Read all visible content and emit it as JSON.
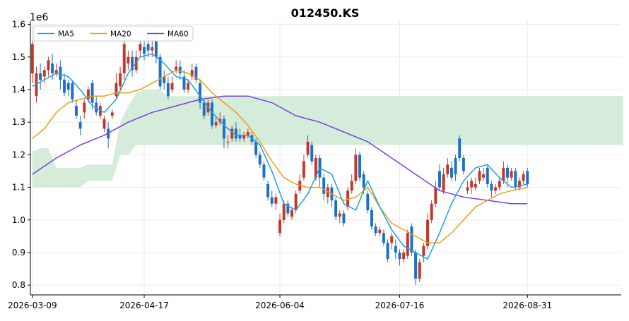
{
  "chart_data": {
    "type": "candlestick",
    "title": "012450.KS",
    "y_multiplier_label": "1e6",
    "ylim": [
      0.77,
      1.61
    ],
    "y_ticks": [
      0.8,
      0.9,
      1.0,
      1.1,
      1.2,
      1.3,
      1.4,
      1.5,
      1.6
    ],
    "y_tick_labels": [
      "0.8",
      "0.9",
      "1.0",
      "1.1",
      "1.2",
      "1.3",
      "1.4",
      "1.5",
      "1.6"
    ],
    "x_start": "2026-03-09",
    "x_ticks": [
      "2026-03-09",
      "2026-04-17",
      "2026-06-04",
      "2026-07-16",
      "2026-08-31"
    ],
    "x_tick_index": [
      0,
      28,
      62,
      92,
      124
    ],
    "x_index_range": [
      -0.5,
      147.5
    ],
    "grid": true,
    "legend_position": "top-left",
    "colors": {
      "up": "#c0392b",
      "down": "#1f6fc9",
      "ma5": "#1ba1e2",
      "ma20": "#f39c12",
      "ma60": "#7b3fe4",
      "cloud_bull": "#d4ecd9",
      "cloud_bear": "#f9d7d7"
    },
    "legend": [
      "MA5",
      "MA20",
      "MA60"
    ],
    "candles": [
      [
        1.45,
        1.54,
        1.55,
        1.42
      ],
      [
        1.38,
        1.45,
        1.47,
        1.36
      ],
      [
        1.45,
        1.43,
        1.48,
        1.4
      ],
      [
        1.44,
        1.46,
        1.47,
        1.42
      ],
      [
        1.46,
        1.49,
        1.5,
        1.44
      ],
      [
        1.48,
        1.45,
        1.51,
        1.43
      ],
      [
        1.45,
        1.46,
        1.48,
        1.44
      ],
      [
        1.47,
        1.43,
        1.49,
        1.4
      ],
      [
        1.43,
        1.39,
        1.45,
        1.38
      ],
      [
        1.42,
        1.4,
        1.43,
        1.38
      ],
      [
        1.42,
        1.37,
        1.43,
        1.36
      ],
      [
        1.35,
        1.32,
        1.37,
        1.31
      ],
      [
        1.3,
        1.28,
        1.32,
        1.26
      ],
      [
        1.33,
        1.36,
        1.37,
        1.31
      ],
      [
        1.37,
        1.4,
        1.41,
        1.36
      ],
      [
        1.42,
        1.36,
        1.43,
        1.34
      ],
      [
        1.36,
        1.33,
        1.38,
        1.32
      ],
      [
        1.32,
        1.35,
        1.36,
        1.31
      ],
      [
        1.28,
        1.31,
        1.32,
        1.27
      ],
      [
        1.28,
        1.25,
        1.3,
        1.22
      ],
      [
        1.32,
        1.33,
        1.34,
        1.31
      ],
      [
        1.38,
        1.42,
        1.45,
        1.37
      ],
      [
        1.41,
        1.45,
        1.47,
        1.4
      ],
      [
        1.45,
        1.54,
        1.55,
        1.43
      ],
      [
        1.48,
        1.5,
        1.52,
        1.46
      ],
      [
        1.5,
        1.46,
        1.52,
        1.44
      ],
      [
        1.46,
        1.5,
        1.52,
        1.45
      ],
      [
        1.52,
        1.54,
        1.55,
        1.5
      ],
      [
        1.53,
        1.51,
        1.55,
        1.49
      ],
      [
        1.54,
        1.52,
        1.56,
        1.5
      ],
      [
        1.52,
        1.53,
        1.55,
        1.5
      ],
      [
        1.55,
        1.5,
        1.57,
        1.48
      ],
      [
        1.5,
        1.41,
        1.51,
        1.4
      ],
      [
        1.44,
        1.42,
        1.46,
        1.4
      ],
      [
        1.42,
        1.38,
        1.44,
        1.37
      ],
      [
        1.4,
        1.42,
        1.44,
        1.39
      ],
      [
        1.46,
        1.47,
        1.49,
        1.45
      ],
      [
        1.47,
        1.45,
        1.49,
        1.43
      ],
      [
        1.44,
        1.4,
        1.46,
        1.39
      ],
      [
        1.4,
        1.42,
        1.43,
        1.39
      ],
      [
        1.44,
        1.46,
        1.48,
        1.43
      ],
      [
        1.47,
        1.43,
        1.48,
        1.42
      ],
      [
        1.42,
        1.36,
        1.43,
        1.34
      ],
      [
        1.36,
        1.32,
        1.37,
        1.31
      ],
      [
        1.33,
        1.36,
        1.37,
        1.32
      ],
      [
        1.36,
        1.29,
        1.37,
        1.28
      ],
      [
        1.29,
        1.3,
        1.32,
        1.28
      ],
      [
        1.3,
        1.31,
        1.33,
        1.29
      ],
      [
        1.31,
        1.25,
        1.32,
        1.22
      ],
      [
        1.24,
        1.24,
        1.26,
        1.22
      ],
      [
        1.25,
        1.28,
        1.29,
        1.24
      ],
      [
        1.28,
        1.25,
        1.3,
        1.24
      ],
      [
        1.26,
        1.25,
        1.28,
        1.24
      ],
      [
        1.25,
        1.26,
        1.27,
        1.24
      ],
      [
        1.26,
        1.27,
        1.28,
        1.25
      ],
      [
        1.26,
        1.24,
        1.27,
        1.23
      ],
      [
        1.24,
        1.2,
        1.25,
        1.19
      ],
      [
        1.2,
        1.17,
        1.21,
        1.16
      ],
      [
        1.17,
        1.13,
        1.18,
        1.12
      ],
      [
        1.11,
        1.07,
        1.12,
        1.06
      ],
      [
        1.07,
        1.05,
        1.09,
        1.04
      ],
      [
        1.05,
        1.07,
        1.08,
        1.03
      ],
      [
        0.96,
        1.0,
        1.02,
        0.95
      ],
      [
        1.0,
        1.05,
        1.06,
        0.99
      ],
      [
        1.05,
        1.02,
        1.06,
        1.01
      ],
      [
        1.01,
        1.03,
        1.04,
        1.0
      ],
      [
        1.03,
        1.08,
        1.09,
        1.02
      ],
      [
        1.09,
        1.12,
        1.14,
        1.08
      ],
      [
        1.13,
        1.18,
        1.2,
        1.12
      ],
      [
        1.2,
        1.24,
        1.26,
        1.19
      ],
      [
        1.23,
        1.18,
        1.24,
        1.17
      ],
      [
        1.13,
        1.19,
        1.2,
        1.12
      ],
      [
        1.19,
        1.13,
        1.2,
        1.1
      ],
      [
        1.13,
        1.08,
        1.14,
        1.06
      ],
      [
        1.07,
        1.1,
        1.11,
        1.05
      ],
      [
        1.1,
        1.06,
        1.11,
        1.04
      ],
      [
        1.06,
        1.01,
        1.07,
        1.0
      ],
      [
        1.01,
        1.02,
        1.03,
        0.99
      ],
      [
        1.02,
        0.99,
        1.03,
        0.98
      ],
      [
        1.04,
        1.09,
        1.1,
        1.03
      ],
      [
        1.09,
        1.12,
        1.14,
        1.08
      ],
      [
        1.12,
        1.2,
        1.22,
        1.11
      ],
      [
        1.2,
        1.13,
        1.21,
        1.12
      ],
      [
        1.14,
        1.1,
        1.15,
        1.08
      ],
      [
        1.08,
        1.03,
        1.09,
        1.02
      ],
      [
        1.03,
        0.98,
        1.04,
        0.97
      ],
      [
        0.98,
        0.96,
        0.99,
        0.95
      ],
      [
        0.96,
        0.97,
        0.98,
        0.95
      ],
      [
        0.96,
        0.93,
        0.97,
        0.92
      ],
      [
        0.93,
        0.88,
        0.94,
        0.87
      ],
      [
        0.93,
        0.95,
        0.96,
        0.91
      ],
      [
        0.92,
        0.9,
        0.94,
        0.88
      ],
      [
        0.9,
        0.88,
        0.91,
        0.86
      ],
      [
        0.88,
        0.9,
        0.91,
        0.87
      ],
      [
        0.89,
        0.96,
        0.97,
        0.88
      ],
      [
        0.98,
        0.9,
        0.99,
        0.89
      ],
      [
        0.9,
        0.82,
        0.91,
        0.8
      ],
      [
        0.82,
        0.87,
        0.88,
        0.81
      ],
      [
        0.89,
        0.92,
        0.93,
        0.87
      ],
      [
        0.92,
        1.0,
        1.02,
        0.91
      ],
      [
        1.0,
        1.05,
        1.06,
        0.99
      ],
      [
        1.05,
        1.1,
        1.12,
        1.04
      ],
      [
        1.15,
        1.1,
        1.17,
        1.09
      ],
      [
        1.09,
        1.14,
        1.16,
        1.08
      ],
      [
        1.14,
        1.17,
        1.19,
        1.13
      ],
      [
        1.16,
        1.13,
        1.18,
        1.12
      ],
      [
        1.19,
        1.14,
        1.2,
        1.12
      ],
      [
        1.25,
        1.19,
        1.26,
        1.18
      ],
      [
        1.19,
        1.15,
        1.2,
        1.14
      ],
      [
        1.09,
        1.1,
        1.12,
        1.08
      ],
      [
        1.1,
        1.12,
        1.13,
        1.08
      ],
      [
        1.1,
        1.11,
        1.13,
        1.09
      ],
      [
        1.12,
        1.15,
        1.16,
        1.11
      ],
      [
        1.13,
        1.14,
        1.16,
        1.12
      ],
      [
        1.16,
        1.11,
        1.17,
        1.1
      ],
      [
        1.11,
        1.09,
        1.12,
        1.07
      ],
      [
        1.09,
        1.1,
        1.11,
        1.08
      ],
      [
        1.1,
        1.12,
        1.13,
        1.09
      ],
      [
        1.12,
        1.16,
        1.18,
        1.11
      ],
      [
        1.16,
        1.13,
        1.17,
        1.1
      ],
      [
        1.13,
        1.15,
        1.16,
        1.12
      ],
      [
        1.15,
        1.1,
        1.16,
        1.09
      ],
      [
        1.1,
        1.12,
        1.13,
        1.09
      ],
      [
        1.12,
        1.14,
        1.15,
        1.11
      ],
      [
        1.15,
        1.11,
        1.16,
        1.1
      ]
    ],
    "ma5": {
      "x": [
        0,
        3,
        6,
        9,
        12,
        15,
        18,
        21,
        24,
        27,
        30,
        33,
        36,
        39,
        42,
        45,
        48,
        51,
        54,
        57,
        60,
        63,
        66,
        69,
        72,
        75,
        78,
        81,
        84,
        87,
        90,
        93,
        96,
        99,
        102,
        105,
        108,
        111,
        114,
        117,
        120,
        124
      ],
      "values": [
        1.41,
        1.43,
        1.45,
        1.44,
        1.4,
        1.35,
        1.33,
        1.37,
        1.45,
        1.5,
        1.51,
        1.48,
        1.44,
        1.43,
        1.38,
        1.33,
        1.29,
        1.26,
        1.26,
        1.23,
        1.15,
        1.05,
        1.03,
        1.08,
        1.16,
        1.14,
        1.05,
        1.03,
        1.12,
        1.04,
        0.97,
        0.92,
        0.9,
        0.88,
        0.96,
        1.05,
        1.12,
        1.16,
        1.17,
        1.13,
        1.1,
        1.11
      ]
    },
    "ma20": {
      "x": [
        0,
        3,
        6,
        9,
        12,
        15,
        18,
        21,
        24,
        27,
        30,
        33,
        36,
        39,
        42,
        45,
        48,
        51,
        54,
        57,
        60,
        63,
        66,
        69,
        72,
        75,
        78,
        81,
        84,
        87,
        90,
        93,
        96,
        99,
        102,
        105,
        108,
        111,
        114,
        117,
        120,
        124
      ],
      "values": [
        1.25,
        1.28,
        1.33,
        1.36,
        1.37,
        1.38,
        1.38,
        1.39,
        1.39,
        1.4,
        1.42,
        1.44,
        1.46,
        1.45,
        1.43,
        1.39,
        1.36,
        1.33,
        1.29,
        1.24,
        1.18,
        1.13,
        1.11,
        1.1,
        1.1,
        1.08,
        1.06,
        1.07,
        1.1,
        1.04,
        0.99,
        0.97,
        0.95,
        0.93,
        0.93,
        0.96,
        1.0,
        1.04,
        1.06,
        1.08,
        1.09,
        1.1
      ]
    },
    "ma60": {
      "x": [
        0,
        6,
        12,
        18,
        24,
        30,
        36,
        42,
        48,
        54,
        60,
        66,
        72,
        78,
        84,
        90,
        96,
        102,
        108,
        114,
        120,
        124
      ],
      "values": [
        1.14,
        1.19,
        1.23,
        1.26,
        1.3,
        1.33,
        1.35,
        1.37,
        1.38,
        1.38,
        1.36,
        1.32,
        1.3,
        1.27,
        1.24,
        1.19,
        1.14,
        1.09,
        1.07,
        1.06,
        1.05,
        1.05
      ]
    },
    "cloud": {
      "x": [
        0,
        2,
        4,
        6,
        8,
        10,
        12,
        14,
        16,
        18,
        20,
        22,
        24,
        26,
        28,
        30,
        32,
        34,
        36,
        38,
        40,
        42,
        44,
        46,
        48,
        50,
        52,
        54,
        56,
        58,
        60,
        62,
        64,
        66,
        68,
        70,
        72,
        74,
        76,
        78,
        80,
        82,
        84,
        86,
        88,
        90,
        92,
        94,
        96,
        98,
        100,
        102,
        104,
        106,
        108,
        110,
        112,
        114,
        116,
        118,
        120,
        122,
        124,
        126,
        128,
        130,
        132,
        134,
        136,
        138,
        140,
        142,
        144,
        146,
        148
      ],
      "span_a": [
        1.21,
        1.22,
        1.22,
        1.16,
        1.16,
        1.16,
        1.16,
        1.17,
        1.17,
        1.17,
        1.17,
        1.3,
        1.35,
        1.39,
        1.4,
        1.4,
        1.4,
        1.38,
        1.38,
        1.38,
        1.38,
        1.38,
        1.38,
        1.38,
        1.38,
        1.38,
        1.38,
        1.38,
        1.38,
        1.38,
        1.38,
        1.38,
        1.38,
        1.38,
        1.38,
        1.38,
        1.38,
        1.38,
        1.38,
        1.38,
        1.38,
        1.38,
        1.38,
        1.38,
        1.38,
        1.38,
        1.38,
        1.38,
        1.38,
        1.38,
        1.38,
        1.38,
        1.38,
        1.38,
        1.38,
        1.38,
        1.38,
        1.38,
        1.38,
        1.38,
        1.38,
        1.38,
        1.38,
        1.38,
        1.38,
        1.38,
        1.38,
        1.38,
        1.38,
        1.38,
        1.38,
        1.38,
        1.38,
        1.38,
        1.38
      ],
      "span_b": [
        1.1,
        1.1,
        1.1,
        1.1,
        1.1,
        1.1,
        1.1,
        1.12,
        1.12,
        1.12,
        1.12,
        1.2,
        1.2,
        1.23,
        1.23,
        1.23,
        1.23,
        1.23,
        1.23,
        1.23,
        1.23,
        1.23,
        1.23,
        1.23,
        1.23,
        1.23,
        1.23,
        1.23,
        1.23,
        1.23,
        1.23,
        1.23,
        1.23,
        1.23,
        1.23,
        1.23,
        1.23,
        1.23,
        1.23,
        1.23,
        1.23,
        1.23,
        1.23,
        1.23,
        1.23,
        1.23,
        1.23,
        1.23,
        1.23,
        1.23,
        1.23,
        1.23,
        1.23,
        1.23,
        1.23,
        1.23,
        1.23,
        1.23,
        1.23,
        1.23,
        1.23,
        1.23,
        1.23,
        1.23,
        1.23,
        1.23,
        1.23,
        1.23,
        1.23,
        1.23,
        1.23,
        1.23,
        1.23,
        1.23,
        1.23
      ]
    }
  }
}
